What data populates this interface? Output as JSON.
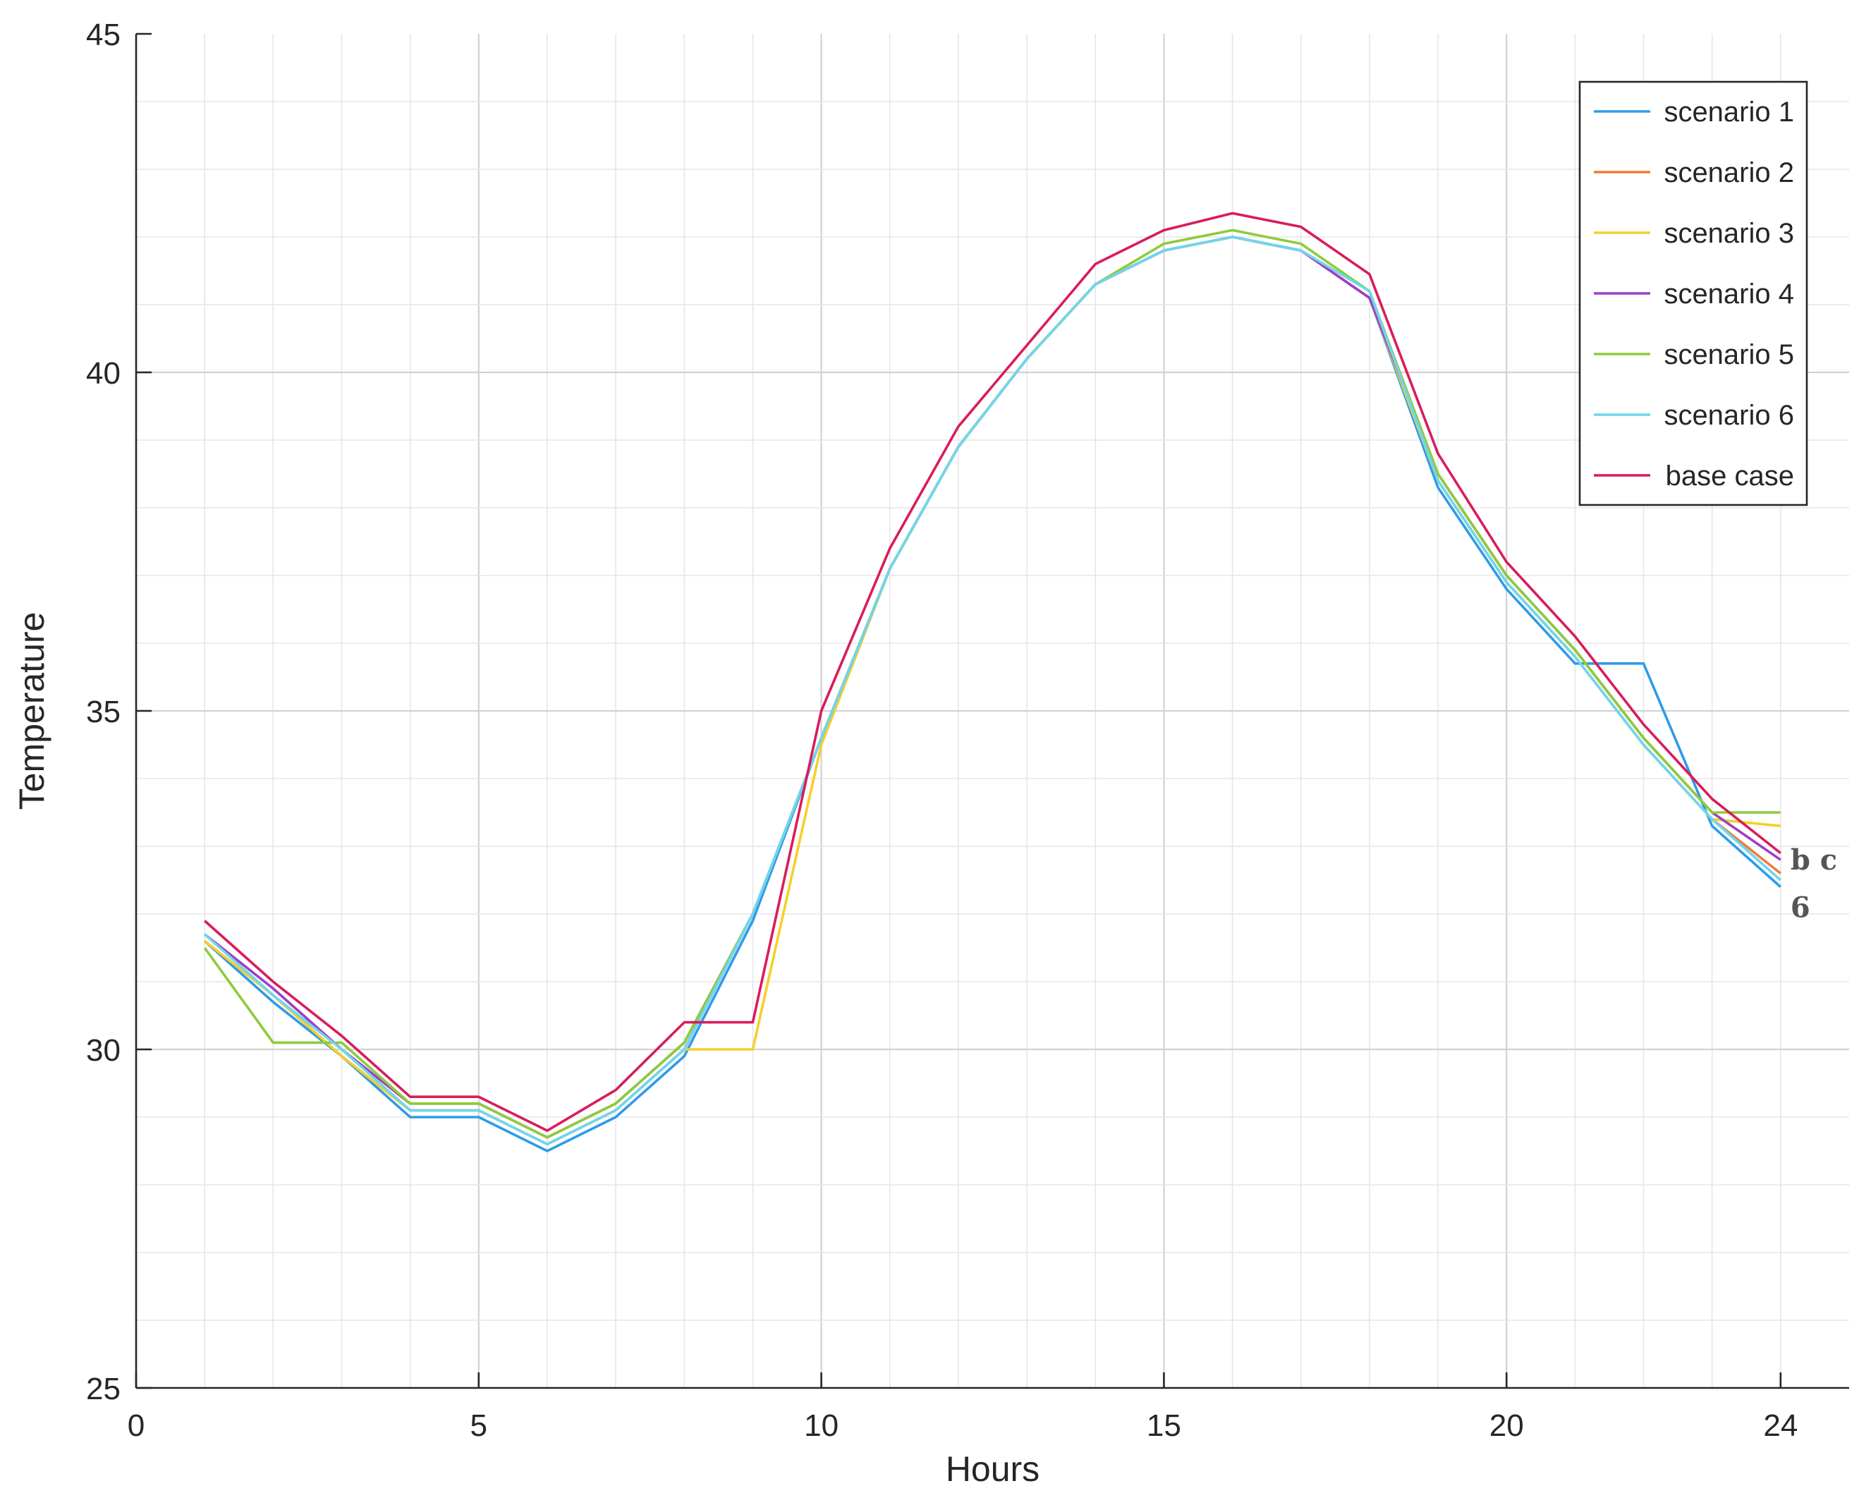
{
  "chart_data": {
    "type": "line",
    "title": "",
    "xlabel": "Hours",
    "ylabel": "Temperature",
    "xlim": [
      0,
      25
    ],
    "ylim": [
      25,
      45
    ],
    "xticks": [
      0,
      5,
      10,
      15,
      20,
      24
    ],
    "yticks": [
      25,
      30,
      35,
      40,
      45
    ],
    "grid": true,
    "minor_grid": true,
    "legend_position": "top-right",
    "x": [
      1,
      2,
      3,
      4,
      5,
      6,
      7,
      8,
      9,
      10,
      11,
      12,
      13,
      14,
      15,
      16,
      17,
      18,
      19,
      20,
      21,
      22,
      23,
      24
    ],
    "series": [
      {
        "name": "scenario 1",
        "color": "#2f9be8",
        "values": [
          31.6,
          30.7,
          29.9,
          29.0,
          29.0,
          28.5,
          29.0,
          29.9,
          31.9,
          34.6,
          37.1,
          38.9,
          40.2,
          41.3,
          41.8,
          42.0,
          41.8,
          41.1,
          38.3,
          36.8,
          35.7,
          35.7,
          33.3,
          32.4
        ]
      },
      {
        "name": "scenario 2",
        "color": "#f07a35",
        "values": [
          31.6,
          30.8,
          29.9,
          29.1,
          29.1,
          28.6,
          29.1,
          30.0,
          32.0,
          34.6,
          37.1,
          38.9,
          40.2,
          41.3,
          41.8,
          42.0,
          41.8,
          41.1,
          38.4,
          36.9,
          35.8,
          34.5,
          33.4,
          32.6
        ]
      },
      {
        "name": "scenario 3",
        "color": "#f5cf2c",
        "values": [
          31.6,
          30.8,
          29.9,
          29.1,
          29.1,
          28.6,
          29.1,
          30.0,
          30.0,
          34.5,
          37.1,
          38.9,
          40.2,
          41.3,
          41.8,
          42.0,
          41.8,
          41.1,
          38.4,
          36.9,
          35.8,
          34.5,
          33.4,
          33.3
        ]
      },
      {
        "name": "scenario 4",
        "color": "#9e3fc7",
        "values": [
          31.7,
          30.9,
          30.0,
          29.2,
          29.2,
          28.7,
          29.2,
          30.1,
          32.0,
          34.6,
          37.1,
          38.9,
          40.2,
          41.3,
          41.8,
          42.0,
          41.8,
          41.1,
          38.5,
          37.0,
          35.9,
          34.6,
          33.5,
          32.8
        ]
      },
      {
        "name": "scenario 5",
        "color": "#8fcb3b",
        "values": [
          31.5,
          30.1,
          30.1,
          29.2,
          29.2,
          28.7,
          29.2,
          30.1,
          32.0,
          34.6,
          37.1,
          38.9,
          40.2,
          41.3,
          41.9,
          42.1,
          41.9,
          41.2,
          38.5,
          37.0,
          35.9,
          34.6,
          33.5,
          33.5
        ]
      },
      {
        "name": "scenario 6",
        "color": "#6fd6ef",
        "values": [
          31.7,
          30.8,
          30.0,
          29.1,
          29.1,
          28.6,
          29.1,
          30.0,
          32.0,
          34.6,
          37.1,
          38.9,
          40.2,
          41.3,
          41.8,
          42.0,
          41.8,
          41.2,
          38.4,
          36.9,
          35.8,
          34.5,
          33.4,
          32.5
        ]
      },
      {
        "name": "base case",
        "color": "#d91c5c",
        "values": [
          31.9,
          31.0,
          30.2,
          29.3,
          29.3,
          28.8,
          29.4,
          30.4,
          30.4,
          35.0,
          37.4,
          39.2,
          40.4,
          41.6,
          42.1,
          42.35,
          42.15,
          41.45,
          38.8,
          37.2,
          36.1,
          34.8,
          33.7,
          32.9
        ]
      }
    ],
    "annotations": [
      {
        "text": "b c",
        "x": 24,
        "y": 32.8
      },
      {
        "text": "6",
        "x": 24,
        "y": 32.1
      }
    ]
  }
}
